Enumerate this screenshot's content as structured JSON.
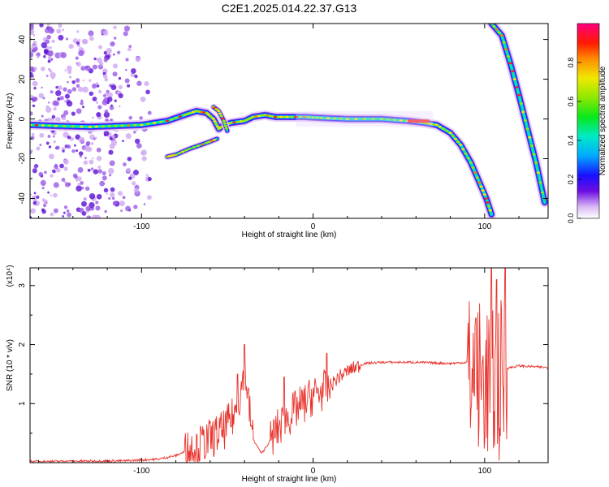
{
  "title": "C2E1.2025.014.22.37.G13",
  "colors": {
    "snr_line": "#e8322b",
    "frame": "#000000",
    "background": "#ffffff"
  },
  "chart_data": [
    {
      "type": "heatmap",
      "xlabel": "Height of straight line (km)",
      "ylabel": "Frequency (Hz)",
      "xlim": [
        -165,
        137
      ],
      "ylim": [
        -50,
        48
      ],
      "xticks": [
        "-100",
        "0",
        "100"
      ],
      "yticks": [
        "-40",
        "-20",
        "0",
        "20",
        "40"
      ],
      "colorbar": {
        "label": "Normalized spectral amplitude",
        "range": [
          0,
          1
        ],
        "ticks": [
          "0.0",
          "0.2",
          "0.4",
          "0.6",
          "0.8"
        ],
        "colormap": "rainbow (white/purple low → red/magenta high)"
      },
      "ridges": [
        {
          "part": "main trace",
          "points": [
            [
              -165,
              -3
            ],
            [
              -150,
              -3.5
            ],
            [
              -130,
              -4
            ],
            [
              -115,
              -3.5
            ],
            [
              -100,
              -3
            ],
            [
              -85,
              -1
            ],
            [
              -75,
              2
            ],
            [
              -68,
              4
            ],
            [
              -62,
              3
            ],
            [
              -58,
              0
            ],
            [
              -55,
              -5
            ],
            [
              -52,
              -3
            ],
            [
              -48,
              -2
            ],
            [
              -40,
              -1
            ],
            [
              -35,
              1
            ],
            [
              -28,
              2
            ],
            [
              -22,
              1
            ],
            [
              -15,
              1
            ],
            [
              -5,
              1
            ],
            [
              5,
              0.5
            ],
            [
              20,
              0
            ],
            [
              40,
              0
            ],
            [
              55,
              -1
            ],
            [
              65,
              -2
            ],
            [
              72,
              -3
            ],
            [
              80,
              -7
            ],
            [
              86,
              -13
            ],
            [
              92,
              -22
            ],
            [
              97,
              -32
            ],
            [
              101,
              -40
            ],
            [
              104,
              -48
            ]
          ]
        },
        {
          "part": "branch",
          "points": [
            [
              -58,
              6
            ],
            [
              -55,
              4
            ],
            [
              -52,
              -1
            ],
            [
              -50,
              -6
            ]
          ]
        },
        {
          "part": "lower arm",
          "points": [
            [
              -85,
              -19
            ],
            [
              -80,
              -18
            ],
            [
              -72,
              -15
            ],
            [
              -62,
              -12
            ],
            [
              -56,
              -10
            ]
          ]
        },
        {
          "part": "right steep trace",
          "points": [
            [
              104,
              48
            ],
            [
              110,
              42
            ],
            [
              115,
              28
            ],
            [
              120,
              12
            ],
            [
              125,
              -5
            ],
            [
              130,
              -22
            ],
            [
              135,
              -42
            ]
          ]
        }
      ]
    },
    {
      "type": "line",
      "xlabel": "Height of straight line (km)",
      "ylabel": "SNR (10 * v/v)",
      "y_multiplier": "(x10⁴)",
      "xlim": [
        -165,
        137
      ],
      "ylim": [
        0,
        3.3
      ],
      "xticks": [
        "-100",
        "0",
        "100"
      ],
      "yticks": [
        "1",
        "2",
        "3"
      ],
      "envelope": [
        [
          -165,
          0.02
        ],
        [
          -110,
          0.03
        ],
        [
          -90,
          0.06
        ],
        [
          -80,
          0.12
        ],
        [
          -70,
          0.25
        ],
        [
          -60,
          0.4
        ],
        [
          -52,
          0.55
        ],
        [
          -46,
          0.8
        ],
        [
          -42,
          1.2
        ],
        [
          -40,
          1.7
        ],
        [
          -38,
          1.1
        ],
        [
          -35,
          0.4
        ],
        [
          -30,
          0.15
        ],
        [
          -20,
          0.6
        ],
        [
          -10,
          0.9
        ],
        [
          -5,
          1.0
        ],
        [
          0,
          1.15
        ],
        [
          5,
          1.2
        ],
        [
          10,
          1.3
        ],
        [
          15,
          1.45
        ],
        [
          20,
          1.55
        ],
        [
          25,
          1.62
        ],
        [
          30,
          1.68
        ],
        [
          40,
          1.7
        ],
        [
          60,
          1.7
        ],
        [
          80,
          1.68
        ],
        [
          90,
          1.7
        ],
        [
          91,
          1.5
        ],
        [
          95,
          1.4
        ],
        [
          100,
          1.4
        ],
        [
          105,
          1.35
        ],
        [
          110,
          1.4
        ],
        [
          113,
          1.6
        ],
        [
          120,
          1.64
        ],
        [
          137,
          1.61
        ]
      ],
      "noise_bands": [
        {
          "range": [
            -75,
            -35
          ],
          "amp": 0.35
        },
        {
          "range": [
            -25,
            10
          ],
          "amp": 0.35
        },
        {
          "range": [
            10,
            28
          ],
          "amp": 0.12
        },
        {
          "range": [
            90,
            113
          ],
          "amp": 1.4
        }
      ],
      "peaks": [
        [
          -40,
          2.0
        ],
        [
          -44,
          1.5
        ],
        [
          -17,
          1.45
        ],
        [
          8,
          1.85
        ],
        [
          95,
          2.45
        ],
        [
          104,
          3.3
        ],
        [
          107,
          3.1
        ],
        [
          112,
          3.3
        ]
      ]
    }
  ]
}
